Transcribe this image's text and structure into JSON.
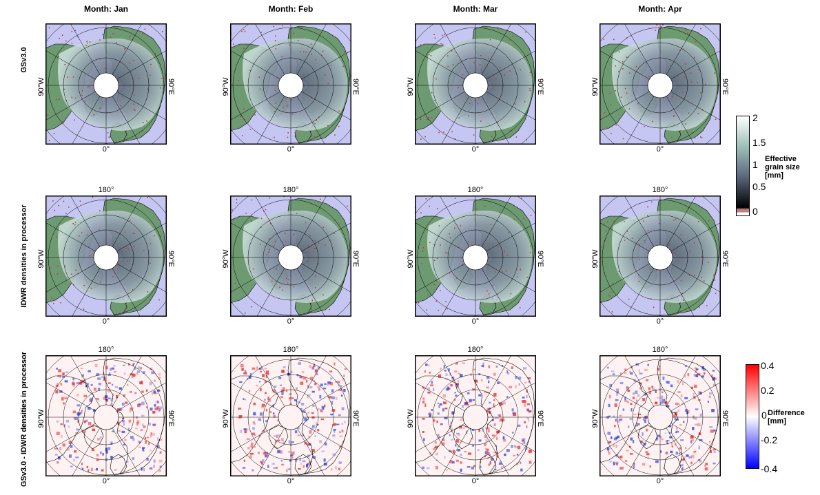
{
  "columns": [
    {
      "title": "Month: Jan"
    },
    {
      "title": "Month: Feb"
    },
    {
      "title": "Month: Mar"
    },
    {
      "title": "Month: Apr"
    }
  ],
  "rows": [
    {
      "label": "GSv3.0",
      "kind": "grain",
      "top_label": ""
    },
    {
      "label": "IDWR densities in processor",
      "kind": "grain",
      "top_label": "180°"
    },
    {
      "label": "GSv3.0 - IDWR densities in processor",
      "kind": "diff",
      "top_label": "180°"
    }
  ],
  "axis_labels": {
    "left": "90°W",
    "right": "90°E",
    "bottom": "0°"
  },
  "colorbar_grain": {
    "title_line1": "Effective",
    "title_line2": "grain size",
    "title_line3": "[mm]",
    "ticks": [
      "2",
      "1.5",
      "1",
      "0.5",
      "0"
    ],
    "colors": {
      "top": "#ffffff",
      "mid_high": "#9fc0b8",
      "mid": "#5c6a80",
      "low": "#000000",
      "nodata": "#c08080"
    }
  },
  "colorbar_diff": {
    "title_line1": "Difference",
    "title_line2": "[mm]",
    "ticks": [
      "0.4",
      "0.2",
      "0",
      "-0.2",
      "-0.4"
    ],
    "colors": {
      "high": "#ff0000",
      "zero": "#ffffff",
      "low": "#0000ff"
    }
  },
  "map_colors": {
    "ocean": "#c6c6f2",
    "land": "#6e9a72",
    "snow_light": "#c8ddd8",
    "snow_dark": "#5a6478",
    "speckle": "#b04040",
    "diff_bg": "#fff2f2"
  }
}
